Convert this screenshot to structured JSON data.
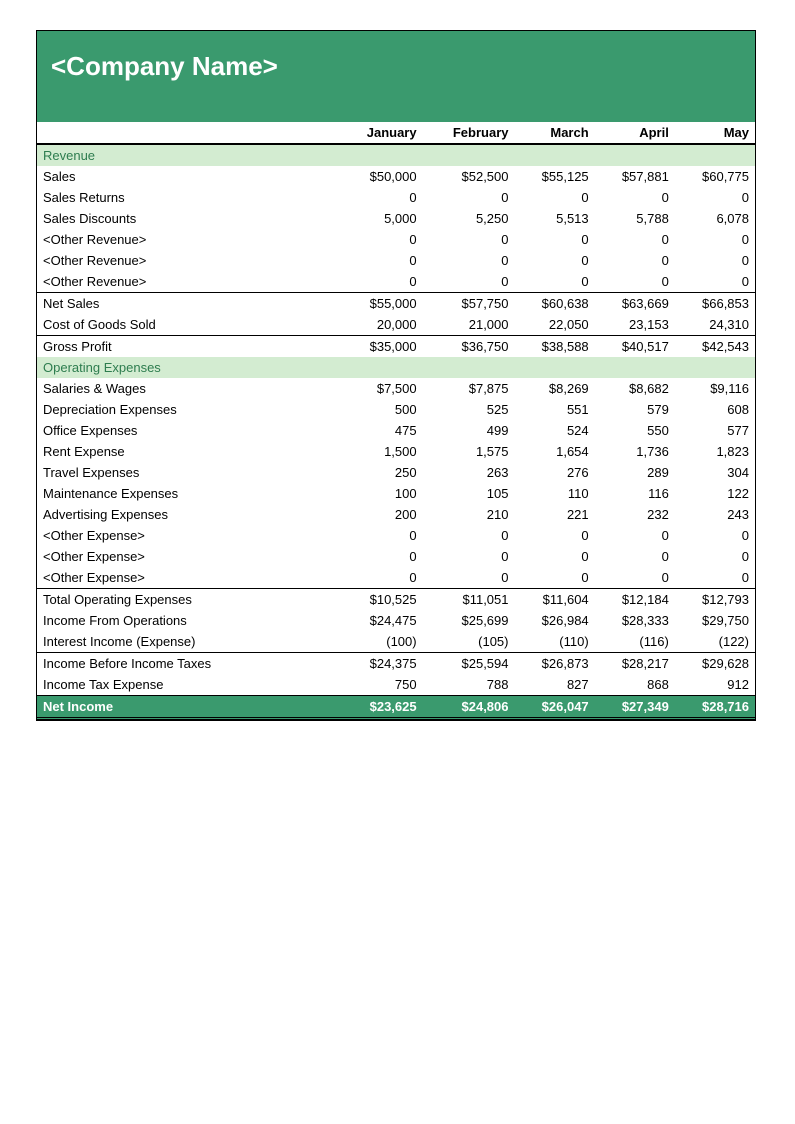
{
  "colors": {
    "brand": "#3a9a6e",
    "section_bg": "#d3ecd1",
    "section_text": "#2e7d4f",
    "border": "#000000",
    "text": "#000000",
    "header_text": "#ffffff"
  },
  "company_name": "<Company Name>",
  "months": [
    "January",
    "February",
    "March",
    "April",
    "May"
  ],
  "sections": {
    "revenue": {
      "label": "Revenue",
      "rows": [
        {
          "label": "Sales",
          "vals": [
            "$50,000",
            "$52,500",
            "$55,125",
            "$57,881",
            "$60,775"
          ]
        },
        {
          "label": "Sales Returns",
          "vals": [
            "0",
            "0",
            "0",
            "0",
            "0"
          ]
        },
        {
          "label": "Sales Discounts",
          "vals": [
            "5,000",
            "5,250",
            "5,513",
            "5,788",
            "6,078"
          ]
        },
        {
          "label": "<Other Revenue>",
          "vals": [
            "0",
            "0",
            "0",
            "0",
            "0"
          ]
        },
        {
          "label": "<Other Revenue>",
          "vals": [
            "0",
            "0",
            "0",
            "0",
            "0"
          ]
        },
        {
          "label": "<Other Revenue>",
          "vals": [
            "0",
            "0",
            "0",
            "0",
            "0"
          ],
          "underline": true
        }
      ],
      "net_sales": {
        "label": "Net Sales",
        "vals": [
          "$55,000",
          "$57,750",
          "$60,638",
          "$63,669",
          "$66,853"
        ]
      },
      "cogs": {
        "label": "Cost of Goods Sold",
        "vals": [
          "20,000",
          "21,000",
          "22,050",
          "23,153",
          "24,310"
        ],
        "underline": true
      },
      "gross_profit": {
        "label": "Gross Profit",
        "vals": [
          "$35,000",
          "$36,750",
          "$38,588",
          "$40,517",
          "$42,543"
        ]
      }
    },
    "opex": {
      "label": "Operating Expenses",
      "rows": [
        {
          "label": "Salaries & Wages",
          "vals": [
            "$7,500",
            "$7,875",
            "$8,269",
            "$8,682",
            "$9,116"
          ]
        },
        {
          "label": "Depreciation Expenses",
          "vals": [
            "500",
            "525",
            "551",
            "579",
            "608"
          ]
        },
        {
          "label": "Office Expenses",
          "vals": [
            "475",
            "499",
            "524",
            "550",
            "577"
          ]
        },
        {
          "label": "Rent Expense",
          "vals": [
            "1,500",
            "1,575",
            "1,654",
            "1,736",
            "1,823"
          ]
        },
        {
          "label": "Travel Expenses",
          "vals": [
            "250",
            "263",
            "276",
            "289",
            "304"
          ]
        },
        {
          "label": "Maintenance Expenses",
          "vals": [
            "100",
            "105",
            "110",
            "116",
            "122"
          ]
        },
        {
          "label": "Advertising Expenses",
          "vals": [
            "200",
            "210",
            "221",
            "232",
            "243"
          ]
        },
        {
          "label": "<Other Expense>",
          "vals": [
            "0",
            "0",
            "0",
            "0",
            "0"
          ]
        },
        {
          "label": "<Other Expense>",
          "vals": [
            "0",
            "0",
            "0",
            "0",
            "0"
          ]
        },
        {
          "label": "<Other Expense>",
          "vals": [
            "0",
            "0",
            "0",
            "0",
            "0"
          ],
          "underline": true
        }
      ],
      "total_opex": {
        "label": "Total Operating Expenses",
        "vals": [
          "$10,525",
          "$11,051",
          "$11,604",
          "$12,184",
          "$12,793"
        ]
      },
      "income_ops": {
        "label": "Income From Operations",
        "vals": [
          "$24,475",
          "$25,699",
          "$26,984",
          "$28,333",
          "$29,750"
        ]
      },
      "interest": {
        "label": "Interest Income (Expense)",
        "vals": [
          "(100)",
          "(105)",
          "(110)",
          "(116)",
          "(122)"
        ],
        "underline": true
      },
      "income_before": {
        "label": "Income Before Income Taxes",
        "vals": [
          "$24,375",
          "$25,594",
          "$26,873",
          "$28,217",
          "$29,628"
        ]
      },
      "tax": {
        "label": "Income Tax Expense",
        "vals": [
          "750",
          "788",
          "827",
          "868",
          "912"
        ]
      }
    },
    "net_income": {
      "label": "Net Income",
      "vals": [
        "$23,625",
        "$24,806",
        "$26,047",
        "$27,349",
        "$28,716"
      ]
    }
  }
}
